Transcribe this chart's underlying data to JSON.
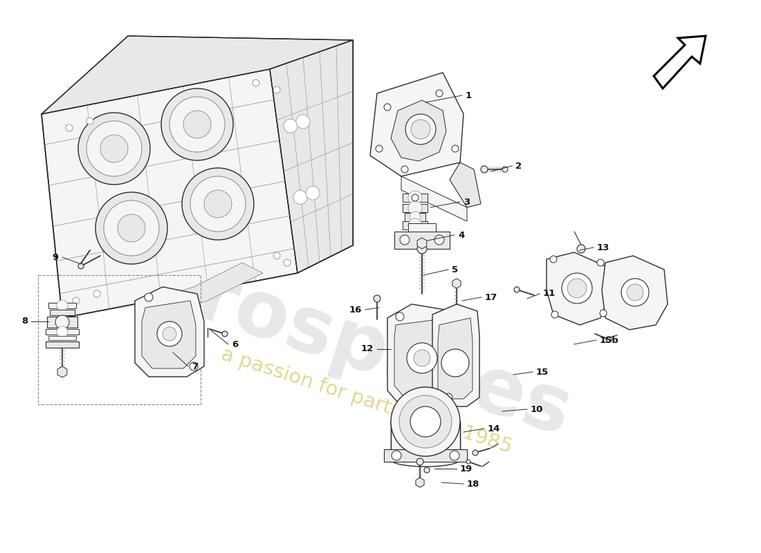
{
  "background_color": "#ffffff",
  "watermark_text1": "eurospares",
  "watermark_text2": "a passion for parts since 1985",
  "line_color": "#2a2a2a",
  "light_line": "#888888",
  "fill_light": "#f5f5f5",
  "fill_mid": "#e8e8e8",
  "fill_dark": "#d0d0d0",
  "label_color": "#111111",
  "label_fontsize": 9.5,
  "watermark1_color": "#d0d0d0",
  "watermark2_color": "#d4c060"
}
